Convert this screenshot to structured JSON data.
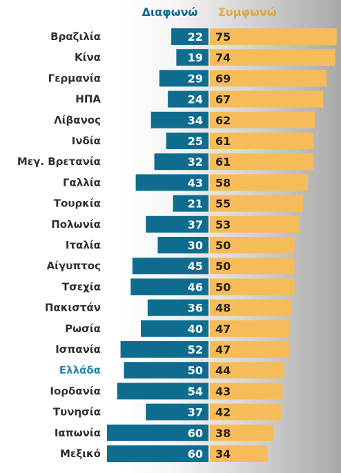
{
  "chart_data": {
    "type": "bar",
    "legend": {
      "placement": "top",
      "disagree_label": "Διαφωνώ",
      "agree_label": "Συμφωνώ"
    },
    "categories": [
      "Βραζιλία",
      "Κίνα",
      "Γερμανία",
      "ΗΠΑ",
      "Λίβανος",
      "Ινδία",
      "Μεγ. Βρετανία",
      "Γαλλία",
      "Τουρκία",
      "Πολωνία",
      "Ιταλία",
      "Αίγυπτος",
      "Τσεχία",
      "Πακιστάν",
      "Ρωσία",
      "Ισπανία",
      "Ελλάδα",
      "Ιορδανία",
      "Τυνησία",
      "Ιαπωνία",
      "Μεξικό"
    ],
    "highlighted_category": "Ελλάδα",
    "series": [
      {
        "name": "Διαφωνώ",
        "values": [
          22,
          19,
          29,
          24,
          34,
          25,
          32,
          43,
          21,
          37,
          30,
          45,
          46,
          36,
          40,
          52,
          50,
          54,
          37,
          60,
          60
        ]
      },
      {
        "name": "Συμφωνώ",
        "values": [
          75,
          74,
          69,
          67,
          62,
          61,
          61,
          58,
          55,
          53,
          50,
          50,
          50,
          48,
          47,
          47,
          44,
          43,
          42,
          38,
          34
        ]
      }
    ],
    "colors": {
      "disagree": "#0e6d8f",
      "agree": "#f7bc5a",
      "label": "#2f2f2f",
      "highlight_label": "#1f86b5"
    }
  }
}
